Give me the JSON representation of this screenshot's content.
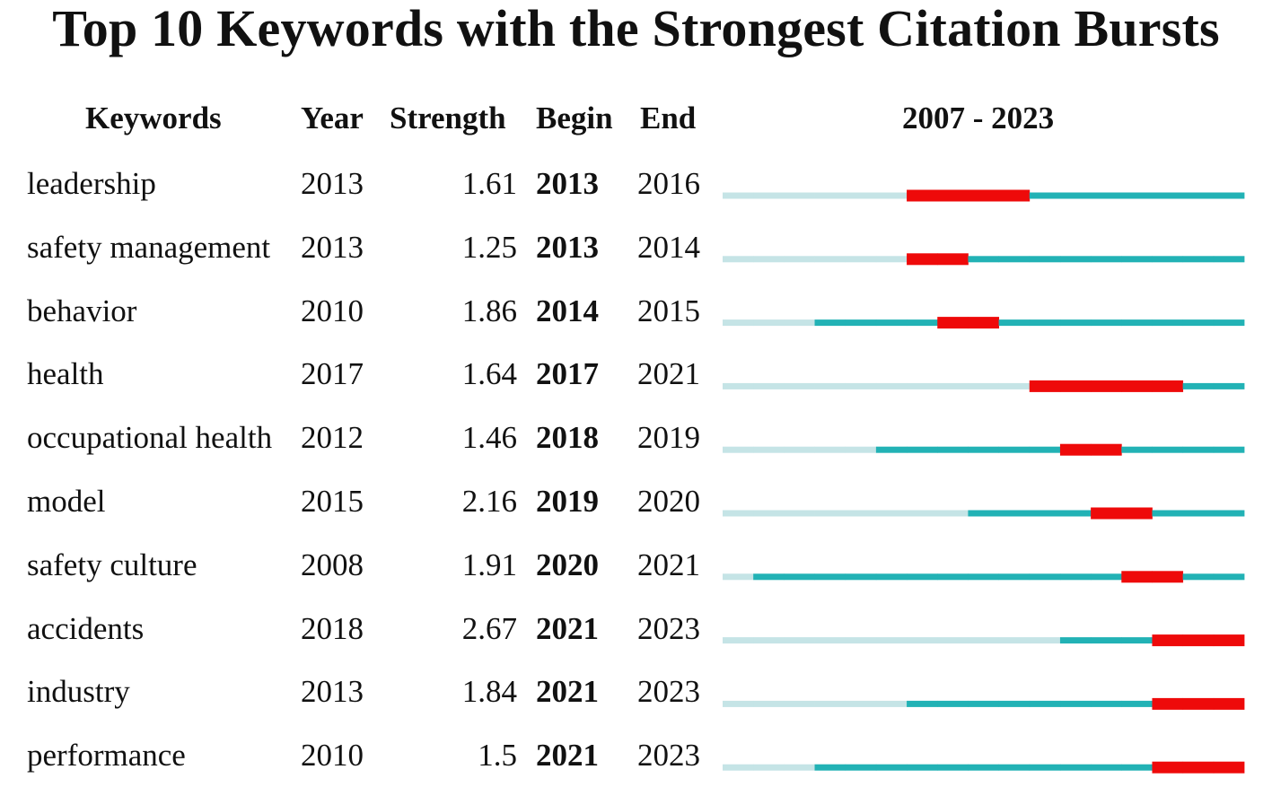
{
  "title": "Top 10 Keywords with the Strongest Citation Bursts",
  "headers": {
    "keywords": "Keywords",
    "year": "Year",
    "strength": "Strength",
    "begin": "Begin",
    "end": "End",
    "range": "2007 - 2023"
  },
  "colors": {
    "before_first_year": "#c5e4e6",
    "active": "#22b2b5",
    "burst": "#ee0a0a"
  },
  "chart_data": {
    "type": "table",
    "range_start": 2007,
    "range_end": 2023,
    "rows": [
      {
        "keyword": "leadership",
        "year": "2013",
        "strength": "1.61",
        "begin": "2013",
        "end": "2016"
      },
      {
        "keyword": "safety management",
        "year": "2013",
        "strength": "1.25",
        "begin": "2013",
        "end": "2014"
      },
      {
        "keyword": "behavior",
        "year": "2010",
        "strength": "1.86",
        "begin": "2014",
        "end": "2015"
      },
      {
        "keyword": "health",
        "year": "2017",
        "strength": "1.64",
        "begin": "2017",
        "end": "2021"
      },
      {
        "keyword": "occupational health",
        "year": "2012",
        "strength": "1.46",
        "begin": "2018",
        "end": "2019"
      },
      {
        "keyword": "model",
        "year": "2015",
        "strength": "2.16",
        "begin": "2019",
        "end": "2020"
      },
      {
        "keyword": "safety culture",
        "year": "2008",
        "strength": "1.91",
        "begin": "2020",
        "end": "2021"
      },
      {
        "keyword": "accidents",
        "year": "2018",
        "strength": "2.67",
        "begin": "2021",
        "end": "2023"
      },
      {
        "keyword": "industry",
        "year": "2013",
        "strength": "1.84",
        "begin": "2021",
        "end": "2023"
      },
      {
        "keyword": "performance",
        "year": "2010",
        "strength": "1.5",
        "begin": "2021",
        "end": "2023"
      }
    ]
  }
}
